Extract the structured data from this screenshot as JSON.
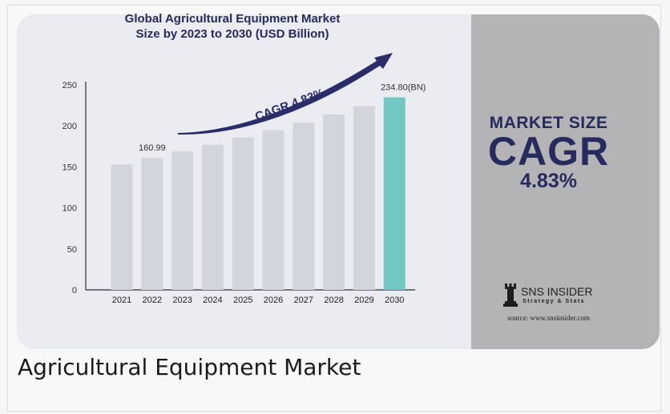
{
  "caption": "Agricultural Equipment Market",
  "side_panel": {
    "line1": "MARKET SIZE",
    "line2": "CAGR",
    "line3": "4.83%"
  },
  "brand": {
    "name": "SNS INSIDER",
    "tagline": "Strategy & Stats",
    "source": "source: www.snsinsider.com",
    "logo_icon": "chess-rook-icon"
  },
  "cagr_arrow_label": "CAGR 4.83%",
  "colors": {
    "bar": "#d2d6dc",
    "highlight_bar": "#74c8c3",
    "arrow": "#2b2d6a",
    "side_panel": "#b4b4b6"
  },
  "chart_data": {
    "type": "bar",
    "title": "Global Agricultural Equipment Market Size by 2023 to 2030 (USD Billion)",
    "title_lines": [
      "Global Agricultural Equipment Market",
      "Size by 2023 to 2030 (USD Billion)"
    ],
    "categories": [
      "2021",
      "2022",
      "2023",
      "2024",
      "2025",
      "2026",
      "2027",
      "2028",
      "2029",
      "2030"
    ],
    "values": [
      153,
      160.99,
      169,
      177,
      186,
      195,
      204,
      214,
      224,
      234.8
    ],
    "data_labels": {
      "1": "160.99",
      "9": "234.80(BN)"
    },
    "highlight_index": 9,
    "yticks": [
      0,
      50,
      100,
      150,
      200,
      250
    ],
    "ylim": [
      0,
      250
    ],
    "grid": false,
    "legend": "none"
  }
}
